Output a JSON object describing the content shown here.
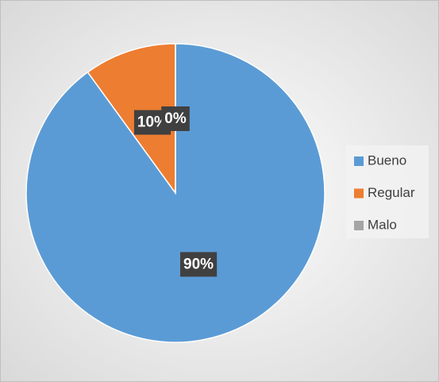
{
  "chart_data": {
    "type": "pie",
    "categories": [
      "Bueno",
      "Regular",
      "Malo"
    ],
    "values": [
      90,
      10,
      0
    ],
    "value_labels": [
      "90%",
      "10%",
      "0%"
    ],
    "colors": [
      "#5b9bd5",
      "#ed7d31",
      "#a5a5a5"
    ],
    "legend": "right"
  }
}
